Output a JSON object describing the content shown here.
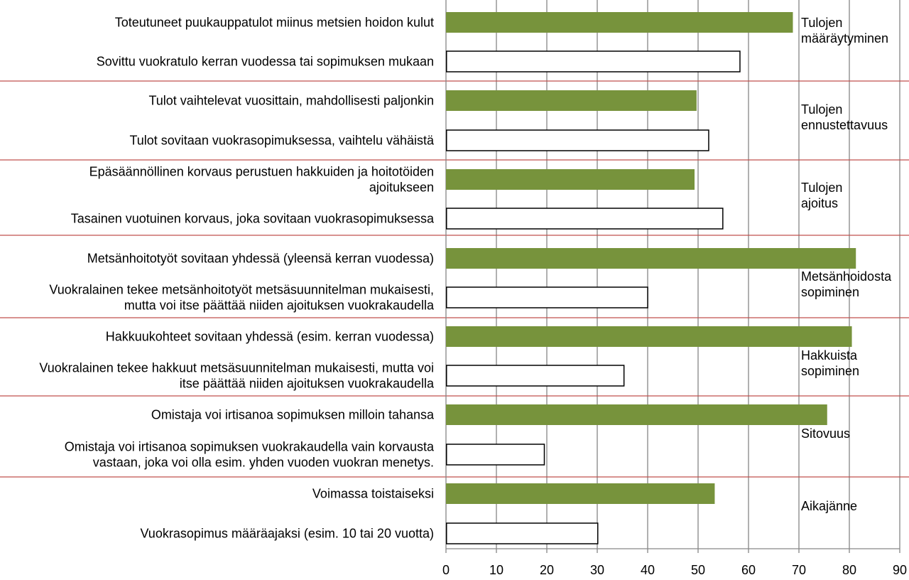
{
  "chart_data": {
    "type": "bar",
    "orientation": "horizontal",
    "xlim": [
      0,
      90
    ],
    "x_ticks": [
      "0",
      "10",
      "20",
      "30",
      "40",
      "50",
      "60",
      "70",
      "80",
      "90"
    ],
    "grid": "vertical",
    "colors": {
      "filled": "#77933c",
      "outline": "#000000",
      "group_separator": "#c0504d",
      "grid": "#868686"
    },
    "groups": [
      {
        "label": [
          "Tulojen",
          "määräytyminen"
        ],
        "bars": [
          {
            "label": [
              "Toteutuneet puukauppatulot miinus metsien hoidon kulut"
            ],
            "value": 68.8,
            "style": "filled"
          },
          {
            "label": [
              "Sovittu vuokratulo kerran vuodessa tai sopimuksen mukaan"
            ],
            "value": 58.2,
            "style": "outline"
          }
        ]
      },
      {
        "label": [
          "Tulojen",
          "ennustettavuus"
        ],
        "bars": [
          {
            "label": [
              "Tulot vaihtelevat vuosittain, mahdollisesti paljonkin"
            ],
            "value": 49.7,
            "style": "filled"
          },
          {
            "label": [
              "Tulot sovitaan vuokrasopimuksessa, vaihtelu vähäistä"
            ],
            "value": 52.0,
            "style": "outline"
          }
        ]
      },
      {
        "label": [
          "Tulojen",
          "ajoitus"
        ],
        "bars": [
          {
            "label": [
              "Epäsäännöllinen korvaus perustuen hakkuiden ja hoitotöiden",
              "ajoitukseen"
            ],
            "value": 49.3,
            "style": "filled"
          },
          {
            "label": [
              "Tasainen vuotuinen korvaus, joka sovitaan vuokrasopimuksessa"
            ],
            "value": 54.8,
            "style": "outline"
          }
        ]
      },
      {
        "label": [
          "Metsänhoidosta",
          "sopiminen"
        ],
        "bars": [
          {
            "label": [
              "Metsänhoitotyöt sovitaan yhdessä (yleensä kerran vuodessa)"
            ],
            "value": 81.3,
            "style": "filled"
          },
          {
            "label": [
              "Vuokralainen tekee metsänhoitotyöt metsäsuunnitelman mukaisesti,",
              "mutta voi itse päättää niiden ajoituksen vuokrakaudella"
            ],
            "value": 39.9,
            "style": "outline"
          }
        ]
      },
      {
        "label": [
          "Hakkuista",
          "sopiminen"
        ],
        "bars": [
          {
            "label": [
              "Hakkuukohteet sovitaan yhdessä (esim. kerran vuodessa)"
            ],
            "value": 80.5,
            "style": "filled"
          },
          {
            "label": [
              "Vuokralainen tekee hakkuut metsäsuunnitelman mukaisesti, mutta voi",
              "itse päättää niiden ajoituksen vuokrakaudella"
            ],
            "value": 35.2,
            "style": "outline"
          }
        ]
      },
      {
        "label": [
          "Sitovuus"
        ],
        "bars": [
          {
            "label": [
              "Omistaja voi irtisanoa sopimuksen milloin tahansa"
            ],
            "value": 75.6,
            "style": "filled"
          },
          {
            "label": [
              "Omistaja voi irtisanoa sopimuksen vuokrakaudella vain korvausta",
              "vastaan, joka  voi olla esim. yhden vuoden vuokran menetys."
            ],
            "value": 19.4,
            "style": "outline"
          }
        ]
      },
      {
        "label": [
          "Aikajänne"
        ],
        "bars": [
          {
            "label": [
              "Voimassa toistaiseksi"
            ],
            "value": 53.3,
            "style": "filled"
          },
          {
            "label": [
              "Vuokrasopimus määräajaksi (esim. 10 tai 20 vuotta)"
            ],
            "value": 30.0,
            "style": "outline"
          }
        ]
      }
    ]
  }
}
